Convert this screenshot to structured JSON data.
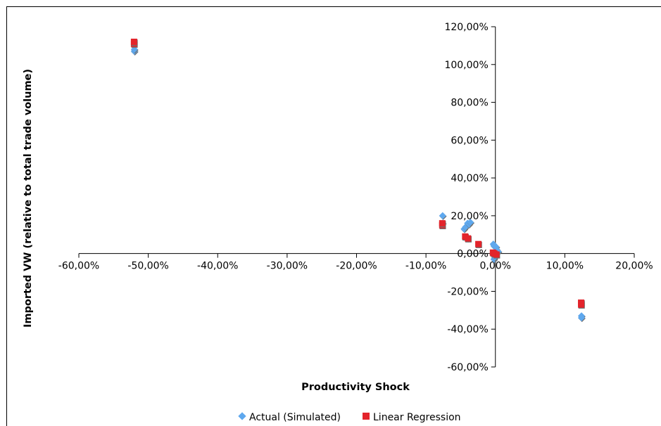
{
  "chart_data": {
    "type": "scatter",
    "title": "",
    "xlabel": "Productivity Shock",
    "ylabel": "Imported VW (relative to total trade volume)",
    "xlim": [
      -0.6,
      0.2
    ],
    "ylim": [
      -0.6,
      1.2
    ],
    "x_ticks": [
      {
        "value": -0.6,
        "label": "-60,00%"
      },
      {
        "value": -0.5,
        "label": "-50,00%"
      },
      {
        "value": -0.4,
        "label": "-40,00%"
      },
      {
        "value": -0.3,
        "label": "-30,00%"
      },
      {
        "value": -0.2,
        "label": "-20,00%"
      },
      {
        "value": -0.1,
        "label": "-10,00%"
      },
      {
        "value": 0.0,
        "label": "0,00%"
      },
      {
        "value": 0.1,
        "label": "10,00%"
      },
      {
        "value": 0.2,
        "label": "20,00%"
      }
    ],
    "y_ticks": [
      {
        "value": 1.2,
        "label": "120,00%"
      },
      {
        "value": 1.0,
        "label": "100,00%"
      },
      {
        "value": 0.8,
        "label": "80,00%"
      },
      {
        "value": 0.6,
        "label": "60,00%"
      },
      {
        "value": 0.4,
        "label": "40,00%"
      },
      {
        "value": 0.2,
        "label": "20,00%"
      },
      {
        "value": 0.0,
        "label": "0,00%"
      },
      {
        "value": -0.2,
        "label": "-20,00%"
      },
      {
        "value": -0.4,
        "label": "-40,00%"
      },
      {
        "value": -0.6,
        "label": "-60,00%"
      }
    ],
    "grid": false,
    "legend_position": "bottom",
    "series": [
      {
        "name": "Actual (Simulated)",
        "marker": "diamond",
        "color": "#5EA8EE",
        "points": [
          {
            "x": -0.52,
            "y": 1.07
          },
          {
            "x": -0.52,
            "y": 1.08
          },
          {
            "x": -0.076,
            "y": 0.2
          },
          {
            "x": -0.076,
            "y": 0.16
          },
          {
            "x": -0.045,
            "y": 0.13
          },
          {
            "x": -0.043,
            "y": 0.14
          },
          {
            "x": -0.04,
            "y": 0.16
          },
          {
            "x": -0.038,
            "y": 0.155
          },
          {
            "x": -0.036,
            "y": 0.165
          },
          {
            "x": -0.04,
            "y": 0.08
          },
          {
            "x": -0.003,
            "y": 0.05
          },
          {
            "x": -0.002,
            "y": 0.04
          },
          {
            "x": 0.001,
            "y": 0.035
          },
          {
            "x": 0.002,
            "y": 0.02
          },
          {
            "x": 0.004,
            "y": 0.01
          },
          {
            "x": -0.002,
            "y": -0.03
          },
          {
            "x": -0.001,
            "y": -0.02
          },
          {
            "x": 0.124,
            "y": -0.33
          },
          {
            "x": 0.124,
            "y": -0.34
          }
        ]
      },
      {
        "name": "Linear Regression",
        "marker": "square",
        "color": "#E3242B",
        "points": [
          {
            "x": -0.52,
            "y": 1.11
          },
          {
            "x": -0.52,
            "y": 1.12
          },
          {
            "x": -0.076,
            "y": 0.15
          },
          {
            "x": -0.076,
            "y": 0.16
          },
          {
            "x": -0.043,
            "y": 0.09
          },
          {
            "x": -0.039,
            "y": 0.08
          },
          {
            "x": -0.024,
            "y": 0.05
          },
          {
            "x": -0.003,
            "y": 0.005
          },
          {
            "x": -0.001,
            "y": 0.0
          },
          {
            "x": 0.002,
            "y": -0.005
          },
          {
            "x": 0.124,
            "y": -0.26
          },
          {
            "x": 0.124,
            "y": -0.27
          }
        ]
      }
    ]
  }
}
